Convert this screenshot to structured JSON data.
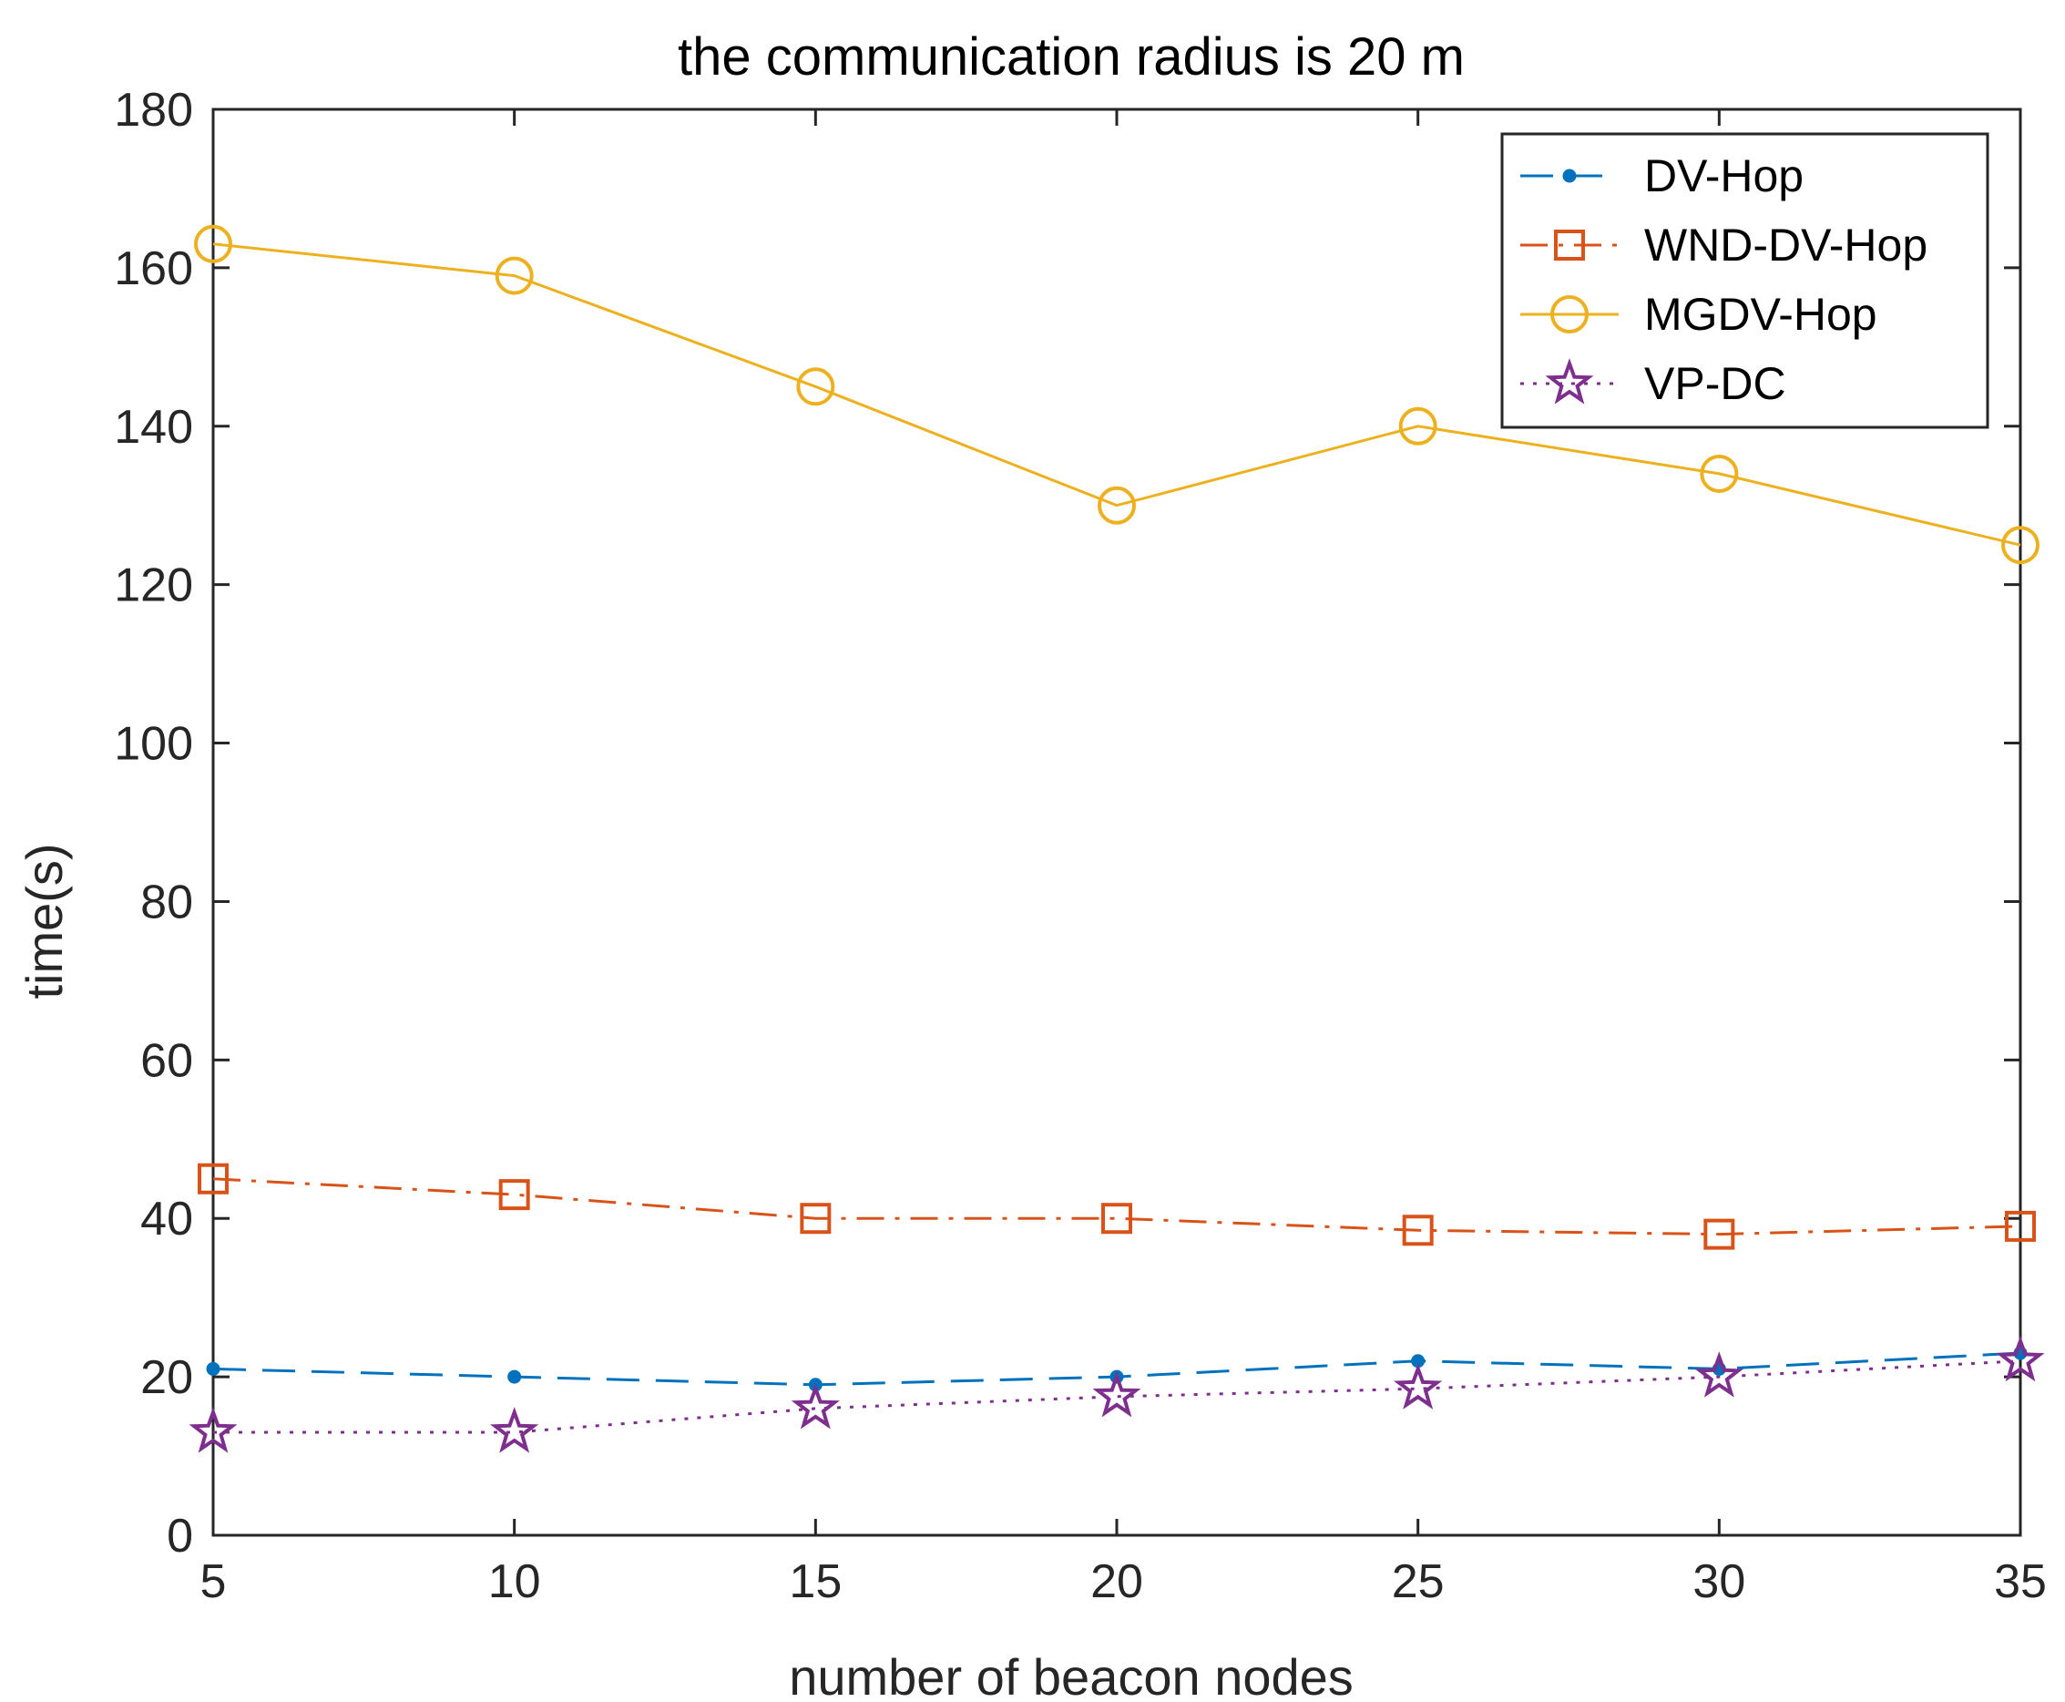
{
  "chart_data": {
    "type": "line",
    "title": "the communication radius is 20 m",
    "xlabel": "number of beacon nodes",
    "ylabel": "time(s)",
    "xlim": [
      5,
      35
    ],
    "ylim": [
      0,
      180
    ],
    "xticks": [
      5,
      10,
      15,
      20,
      25,
      30,
      35
    ],
    "yticks": [
      0,
      20,
      40,
      60,
      80,
      100,
      120,
      140,
      160,
      180
    ],
    "x": [
      5,
      10,
      15,
      20,
      25,
      30,
      35
    ],
    "grid": false,
    "legend_position": "top-right",
    "series": [
      {
        "name": "DV-Hop",
        "values": [
          21,
          20,
          19,
          20,
          22,
          21,
          23
        ],
        "color": "#0072BD",
        "line_style": "dashed",
        "marker": "point"
      },
      {
        "name": "WND-DV-Hop",
        "values": [
          45,
          43,
          40,
          40,
          38.5,
          38,
          39
        ],
        "color": "#D95319",
        "line_style": "dash-dot",
        "marker": "square"
      },
      {
        "name": "MGDV-Hop",
        "values": [
          163,
          159,
          145,
          130,
          140,
          134,
          125
        ],
        "color": "#EDB120",
        "line_style": "solid",
        "marker": "circle"
      },
      {
        "name": "VP-DC",
        "values": [
          13,
          13,
          16,
          17.5,
          18.5,
          20,
          22
        ],
        "color": "#7E2F8E",
        "line_style": "dotted",
        "marker": "star"
      }
    ]
  }
}
